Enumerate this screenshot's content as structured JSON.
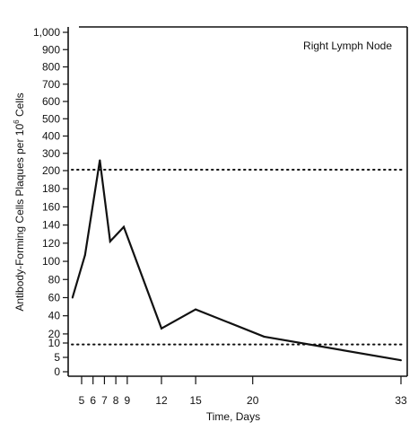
{
  "chart_data": {
    "type": "line",
    "title": "",
    "annotation": "Right Lymph Node",
    "xlabel": "Time, Days",
    "ylabel": "Antibody-Forming Cells Plaques per 10",
    "ylabel_exponent": "6",
    "ylabel_suffix": " Cells",
    "x_ticks": [
      5,
      6,
      7,
      8,
      9,
      12,
      15,
      20,
      33
    ],
    "xlim": [
      3,
      33
    ],
    "y_ticks": [
      "0",
      "5",
      "10",
      "20",
      "40",
      "60",
      "80",
      "100",
      "120",
      "140",
      "160",
      "180",
      "200",
      "300",
      "400",
      "500",
      "600",
      "700",
      "800",
      "900",
      "1,000"
    ],
    "y_scale": "piecewise: 0–10 step 5, 10–200 step 20, 200–1,000 step 100",
    "grid": false,
    "series": [
      {
        "name": "",
        "x": [
          4.2,
          5.3,
          6.6,
          7.5,
          8.7,
          12.0,
          15.0,
          21.0,
          33.0
        ],
        "y": [
          60,
          107,
          260,
          122,
          138,
          26,
          47,
          17,
          4
        ]
      }
    ],
    "reference_lines": [
      {
        "style": "dotted",
        "y": 205
      },
      {
        "style": "dotted",
        "y": 9.5
      }
    ]
  }
}
